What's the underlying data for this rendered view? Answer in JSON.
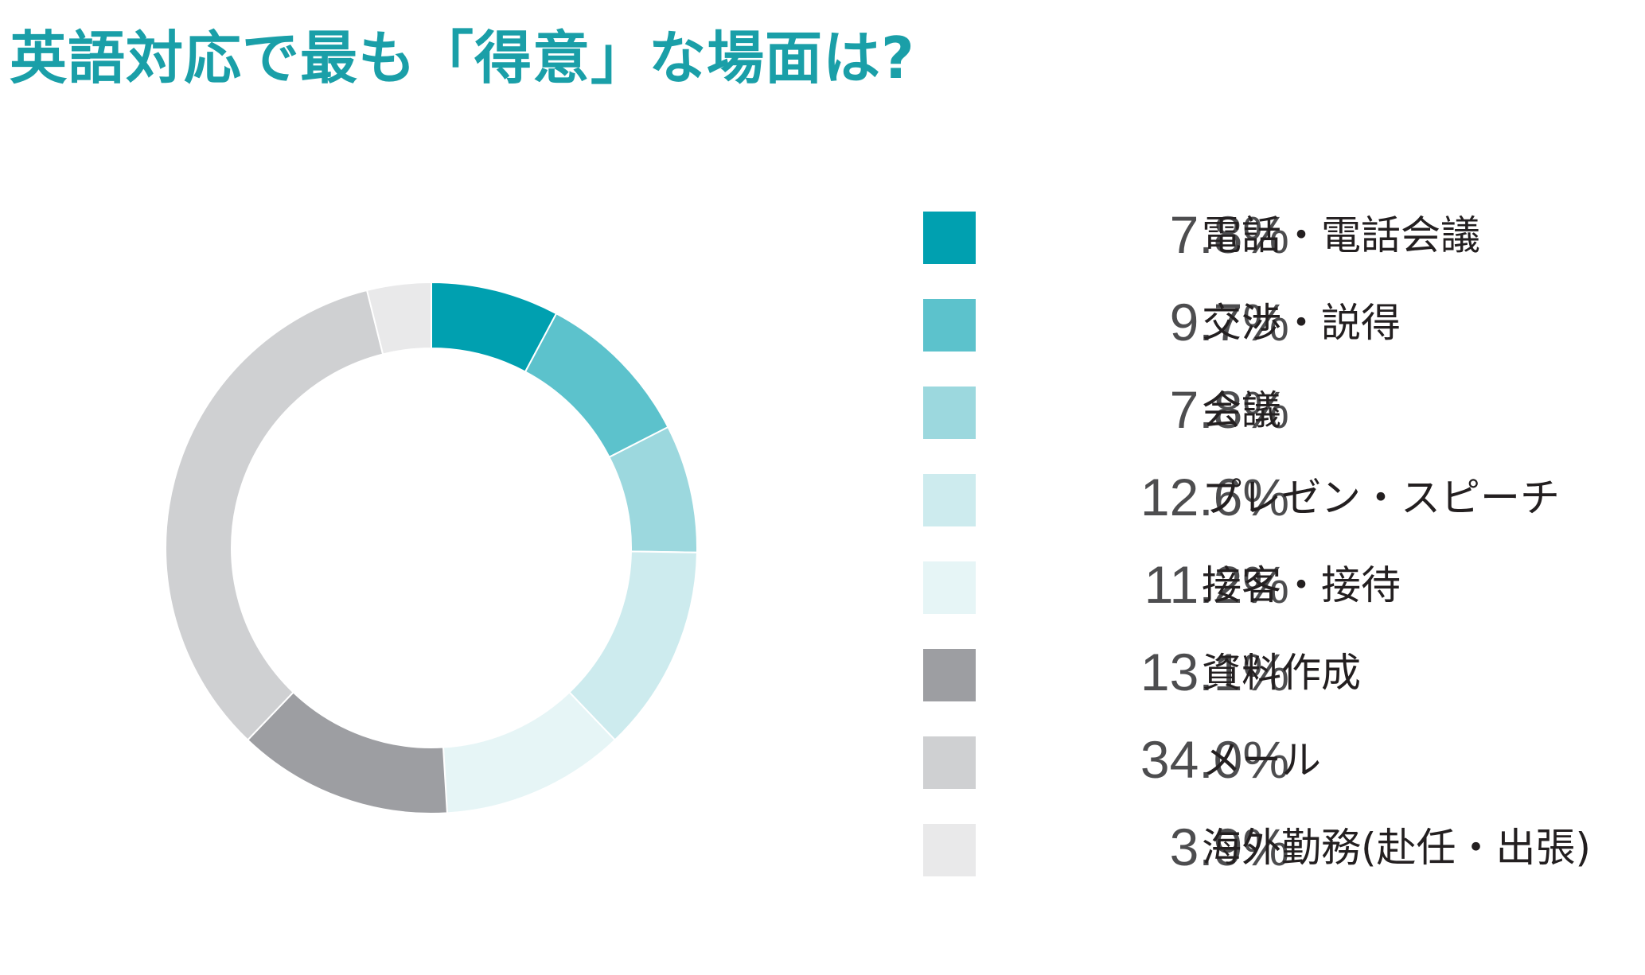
{
  "title": "英語対応で最も「得意」な場面は?",
  "colors": {
    "title": "#1a9fa8",
    "separator": "#ffffff"
  },
  "chart_data": {
    "type": "pie",
    "style": "donut",
    "title": "英語対応で最も「得意」な場面は?",
    "legend_position": "right",
    "unit": "%",
    "slices": [
      {
        "label": "電話・電話会議",
        "value": 7.8,
        "value_label": "7.8%",
        "color": "#00a0b0"
      },
      {
        "label": "交渉・説得",
        "value": 9.7,
        "value_label": "9.7%",
        "color": "#5cc2cc"
      },
      {
        "label": "会議",
        "value": 7.8,
        "value_label": "7.8%",
        "color": "#9cd8de"
      },
      {
        "label": "プレゼン・スピーチ",
        "value": 12.6,
        "value_label": "12.6%",
        "color": "#cdebee"
      },
      {
        "label": "接客・接待",
        "value": 11.2,
        "value_label": "11.2%",
        "color": "#e6f5f6"
      },
      {
        "label": "資料作成",
        "value": 13.1,
        "value_label": "13.1%",
        "color": "#9d9ea2"
      },
      {
        "label": "メール",
        "value": 34.0,
        "value_label": "34.0%",
        "color": "#cfd0d2"
      },
      {
        "label": "海外勤務(赴任・出張)",
        "value": 3.9,
        "value_label": "3.9%",
        "color": "#e9e9ea"
      }
    ]
  }
}
